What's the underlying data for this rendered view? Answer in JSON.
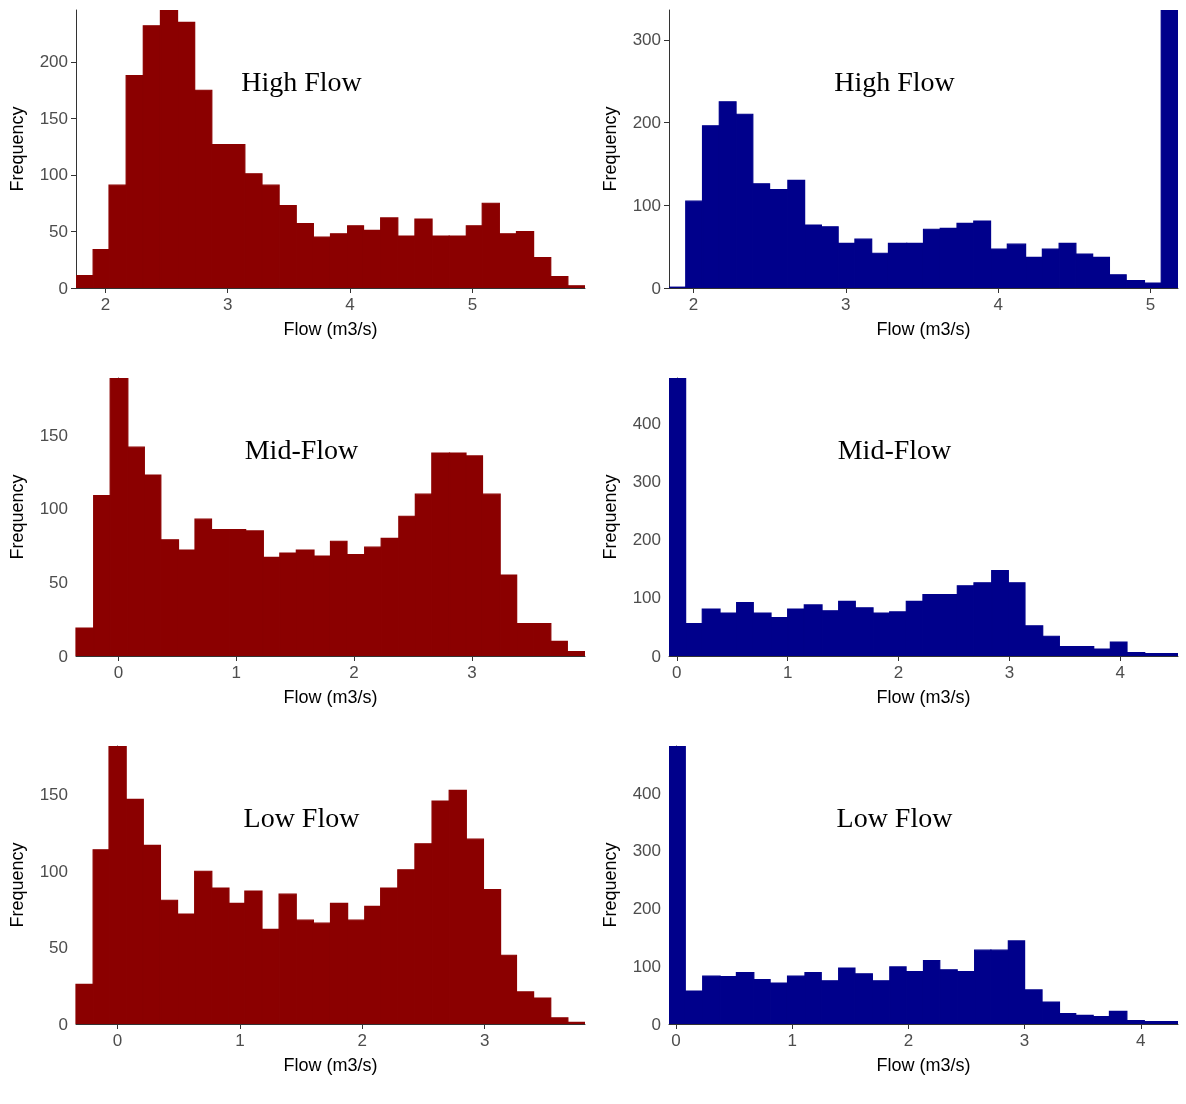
{
  "chart_data": [
    {
      "type": "histogram",
      "title": "High Flow",
      "xlabel": "Flow (m3/s)",
      "ylabel": "Frequency",
      "color": "#8b0000",
      "bins": [
        1.76,
        1.9,
        2.03,
        2.17,
        2.31,
        2.45,
        2.59,
        2.73,
        2.87,
        3.0,
        3.14,
        3.28,
        3.42,
        3.56,
        3.7,
        3.84,
        3.98,
        4.11,
        4.25,
        4.39,
        4.53,
        4.67,
        4.81,
        4.95,
        5.08,
        5.22,
        5.36,
        5.5,
        5.64,
        5.78,
        5.92
      ],
      "values": [
        11,
        34,
        91,
        188,
        232,
        246,
        235,
        175,
        127,
        127,
        101,
        91,
        73,
        57,
        45,
        48,
        55,
        51,
        62,
        46,
        61,
        46,
        46,
        55,
        75,
        48,
        50,
        27,
        10,
        2
      ],
      "xlim": [
        1.76,
        5.92
      ],
      "xticks": [
        2,
        3,
        4,
        5
      ],
      "ylim": [
        0,
        246
      ],
      "yticks": [
        0,
        50,
        100,
        150,
        200
      ]
    },
    {
      "type": "histogram",
      "title": "High Flow",
      "xlabel": "Flow (m3/s)",
      "ylabel": "Frequency",
      "color": "#00008b",
      "bins": [
        1.84,
        1.95,
        2.06,
        2.17,
        2.28,
        2.39,
        2.5,
        2.62,
        2.73,
        2.84,
        2.95,
        3.06,
        3.17,
        3.28,
        3.4,
        3.51,
        3.62,
        3.73,
        3.84,
        3.95,
        4.06,
        4.18,
        4.29,
        4.4,
        4.51,
        4.62,
        4.73,
        4.84,
        4.96,
        5.07,
        5.18
      ],
      "values": [
        1,
        105,
        196,
        225,
        210,
        126,
        119,
        130,
        76,
        74,
        54,
        59,
        42,
        54,
        54,
        71,
        72,
        78,
        81,
        47,
        53,
        37,
        47,
        54,
        41,
        37,
        16,
        9,
        6,
        336
      ],
      "xlim": [
        1.84,
        5.18
      ],
      "xticks": [
        2,
        3,
        4,
        5
      ],
      "ylim": [
        0,
        336
      ],
      "yticks": [
        0,
        100,
        200,
        300
      ]
    },
    {
      "type": "histogram",
      "title": "Mid-Flow",
      "xlabel": "Flow (m3/s)",
      "ylabel": "Frequency",
      "color": "#8b0000",
      "bins": [
        -0.36,
        -0.21,
        -0.07,
        0.08,
        0.22,
        0.36,
        0.51,
        0.65,
        0.79,
        0.94,
        1.08,
        1.23,
        1.37,
        1.51,
        1.66,
        1.8,
        1.94,
        2.09,
        2.23,
        2.38,
        2.52,
        2.66,
        2.81,
        2.95,
        3.09,
        3.24,
        3.38,
        3.52,
        3.67,
        3.81,
        3.96
      ],
      "values": [
        19,
        109,
        189,
        142,
        123,
        79,
        72,
        93,
        86,
        86,
        85,
        67,
        70,
        72,
        68,
        78,
        69,
        74,
        80,
        95,
        110,
        138,
        138,
        136,
        110,
        55,
        22,
        22,
        10,
        3
      ],
      "xlim": [
        -0.36,
        3.96
      ],
      "xticks": [
        0,
        1,
        2,
        3
      ],
      "ylim": [
        0,
        189
      ],
      "yticks": [
        0,
        50,
        100,
        150
      ]
    },
    {
      "type": "histogram",
      "title": "Mid-Flow",
      "xlabel": "Flow (m3/s)",
      "ylabel": "Frequency",
      "color": "#00008b",
      "bins": [
        -0.07,
        0.08,
        0.23,
        0.39,
        0.54,
        0.69,
        0.85,
        1.0,
        1.15,
        1.31,
        1.46,
        1.61,
        1.77,
        1.92,
        2.07,
        2.22,
        2.38,
        2.53,
        2.68,
        2.84,
        2.99,
        3.14,
        3.3,
        3.45,
        3.6,
        3.76,
        3.91,
        4.06,
        4.22,
        4.37,
        4.52
      ],
      "values": [
        479,
        56,
        81,
        74,
        92,
        74,
        66,
        81,
        88,
        78,
        94,
        83,
        74,
        76,
        94,
        106,
        106,
        121,
        126,
        147,
        126,
        52,
        34,
        16,
        16,
        12,
        24,
        6,
        4,
        4
      ],
      "xlim": [
        -0.07,
        4.52
      ],
      "xticks": [
        0,
        1,
        2,
        3,
        4
      ],
      "ylim": [
        0,
        479
      ],
      "yticks": [
        0,
        100,
        200,
        300,
        400
      ]
    },
    {
      "type": "histogram",
      "title": "Low Flow",
      "xlabel": "Flow (m3/s)",
      "ylabel": "Frequency",
      "color": "#8b0000",
      "bins": [
        -0.34,
        -0.2,
        -0.07,
        0.07,
        0.21,
        0.35,
        0.49,
        0.63,
        0.77,
        0.91,
        1.04,
        1.18,
        1.32,
        1.46,
        1.6,
        1.74,
        1.88,
        2.02,
        2.15,
        2.29,
        2.43,
        2.57,
        2.71,
        2.85,
        2.99,
        3.13,
        3.26,
        3.4,
        3.54,
        3.68,
        3.82
      ],
      "values": [
        26,
        114,
        182,
        147,
        117,
        81,
        72,
        100,
        89,
        79,
        87,
        62,
        85,
        68,
        66,
        79,
        68,
        77,
        89,
        101,
        118,
        146,
        153,
        121,
        88,
        45,
        21,
        17,
        4,
        1
      ],
      "xlim": [
        -0.34,
        3.82
      ],
      "xticks": [
        0,
        1,
        2,
        3
      ],
      "ylim": [
        0,
        182
      ],
      "yticks": [
        0,
        50,
        100,
        150
      ]
    },
    {
      "type": "histogram",
      "title": "Low Flow",
      "xlabel": "Flow (m3/s)",
      "ylabel": "Frequency",
      "color": "#00008b",
      "bins": [
        -0.06,
        0.08,
        0.23,
        0.38,
        0.52,
        0.67,
        0.81,
        0.96,
        1.11,
        1.25,
        1.4,
        1.54,
        1.69,
        1.84,
        1.98,
        2.13,
        2.27,
        2.42,
        2.57,
        2.71,
        2.86,
        3.0,
        3.15,
        3.3,
        3.44,
        3.59,
        3.73,
        3.88,
        4.03,
        4.17,
        4.32
      ],
      "values": [
        482,
        57,
        83,
        82,
        89,
        77,
        71,
        83,
        89,
        75,
        97,
        87,
        75,
        99,
        91,
        110,
        94,
        91,
        128,
        128,
        144,
        59,
        38,
        18,
        15,
        13,
        22,
        6,
        4,
        4
      ],
      "xlim": [
        -0.06,
        4.32
      ],
      "xticks": [
        0,
        1,
        2,
        3,
        4
      ],
      "ylim": [
        0,
        482
      ],
      "yticks": [
        0,
        100,
        200,
        300,
        400
      ]
    }
  ]
}
